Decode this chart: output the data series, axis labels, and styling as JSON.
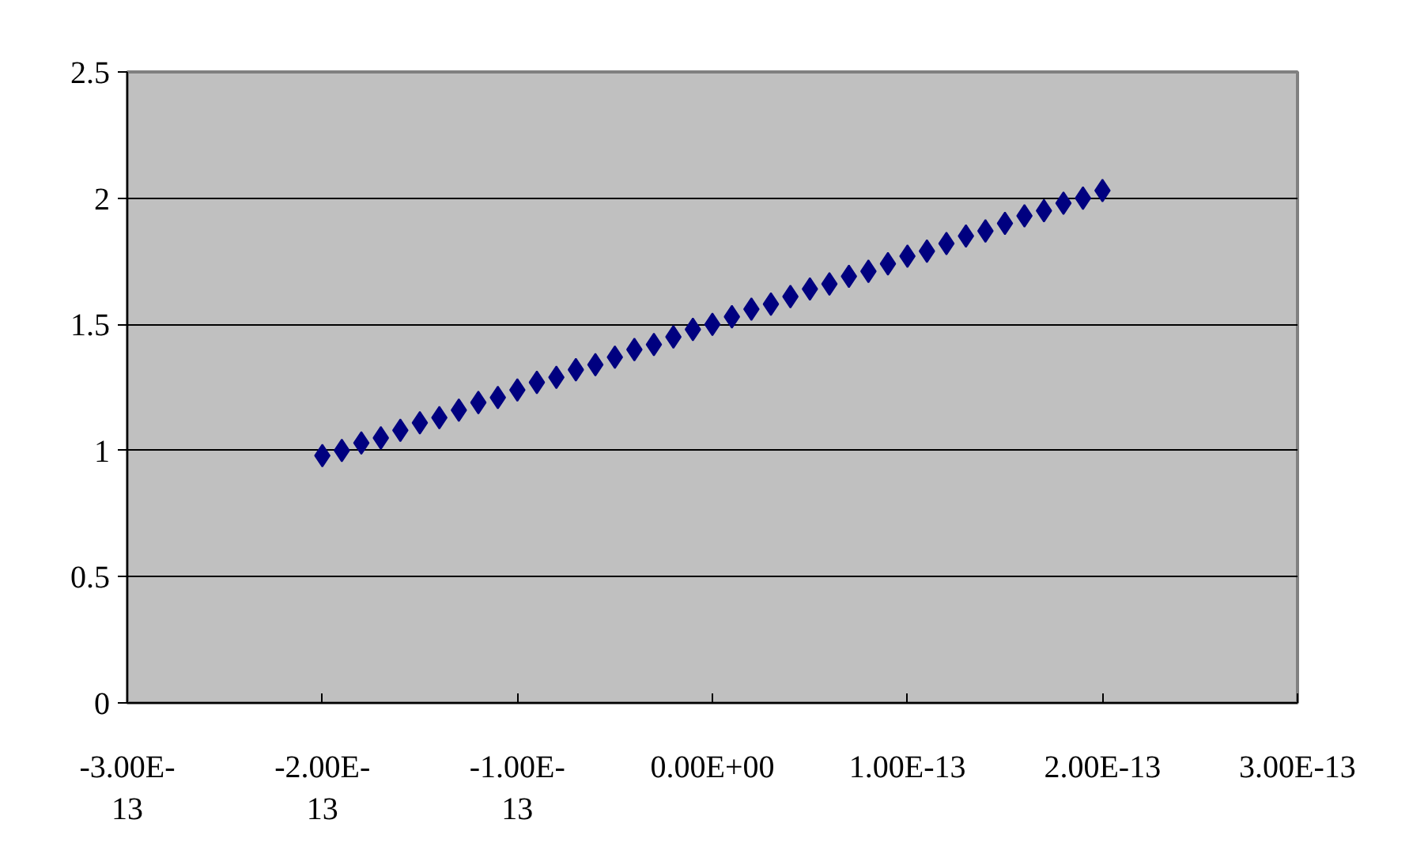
{
  "chart_data": {
    "type": "scatter",
    "marker": "diamond",
    "grid": "y",
    "x": [
      -2e-13,
      -1.9e-13,
      -1.8e-13,
      -1.7e-13,
      -1.6e-13,
      -1.5e-13,
      -1.4e-13,
      -1.3e-13,
      -1.2e-13,
      -1.1e-13,
      -1e-13,
      -9e-14,
      -8e-14,
      -7e-14,
      -6e-14,
      -5e-14,
      -4e-14,
      -3e-14,
      -2e-14,
      -1e-14,
      0,
      1e-14,
      2e-14,
      3e-14,
      4e-14,
      5e-14,
      6e-14,
      7e-14,
      8e-14,
      9e-14,
      1e-13,
      1.1e-13,
      1.2e-13,
      1.3e-13,
      1.4e-13,
      1.5e-13,
      1.6e-13,
      1.7e-13,
      1.8e-13,
      1.9e-13,
      2e-13
    ],
    "series": [
      {
        "color": "#000080",
        "values": [
          0.98,
          1.0,
          1.03,
          1.05,
          1.08,
          1.11,
          1.13,
          1.16,
          1.19,
          1.21,
          1.24,
          1.27,
          1.29,
          1.32,
          1.34,
          1.37,
          1.4,
          1.42,
          1.45,
          1.48,
          1.5,
          1.53,
          1.56,
          1.58,
          1.61,
          1.64,
          1.66,
          1.69,
          1.71,
          1.74,
          1.77,
          1.79,
          1.82,
          1.85,
          1.87,
          1.9,
          1.93,
          1.95,
          1.98,
          2.0,
          2.03
        ]
      }
    ],
    "xlim": [
      -3e-13,
      3e-13
    ],
    "xticks": [
      {
        "value": -3e-13,
        "label": "-3.00E-13"
      },
      {
        "value": -2e-13,
        "label": "-2.00E-13"
      },
      {
        "value": -1e-13,
        "label": "-1.00E-13"
      },
      {
        "value": 0,
        "label": "0.00E+00"
      },
      {
        "value": 1e-13,
        "label": "1.00E-13"
      },
      {
        "value": 2e-13,
        "label": "2.00E-13"
      },
      {
        "value": 3e-13,
        "label": "3.00E-13"
      }
    ],
    "ylim": [
      0,
      2.5
    ],
    "yticks": [
      0,
      0.5,
      1,
      1.5,
      2,
      2.5
    ]
  }
}
